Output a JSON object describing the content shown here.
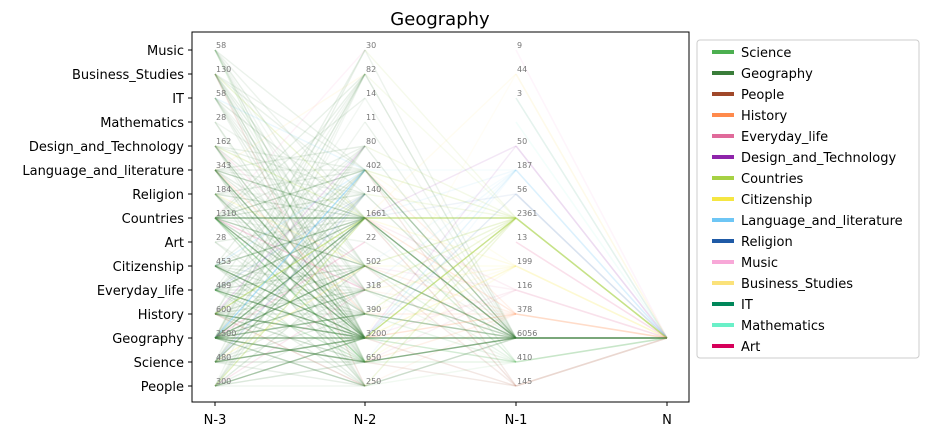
{
  "chart_data": {
    "type": "parallel-flow",
    "title": "Geography",
    "x_axis": [
      "N-3",
      "N-2",
      "N-1",
      "N"
    ],
    "y_categories": [
      "Music",
      "Business_Studies",
      "IT",
      "Mathematics",
      "Design_and_Technology",
      "Language_and_literature",
      "Religion",
      "Countries",
      "Art",
      "Citizenship",
      "Everyday_life",
      "History",
      "Geography",
      "Science",
      "People"
    ],
    "counts": {
      "N-3": {
        "Music": "58",
        "Business_Studies": "130",
        "IT": "58",
        "Mathematics": "28",
        "Design_and_Technology": "162",
        "Language_and_literature": "343",
        "Religion": "184",
        "Countries": "1310",
        "Art": "28",
        "Citizenship": "453",
        "Everyday_life": "489",
        "History": "600",
        "Geography": "2500",
        "Science": "480",
        "People": "300"
      },
      "N-2": {
        "Music": "30",
        "Business_Studies": "82",
        "IT": "14",
        "Mathematics": "11",
        "Design_and_Technology": "80",
        "Language_and_literature": "402",
        "Religion": "140",
        "Countries": "1661",
        "Art": "22",
        "Citizenship": "502",
        "Everyday_life": "318",
        "History": "390",
        "Geography": "3200",
        "Science": "650",
        "People": "250"
      },
      "N-1": {
        "Music": "9",
        "Business_Studies": "44",
        "IT": "3",
        "Mathematics": "",
        "Design_and_Technology": "50",
        "Language_and_literature": "187",
        "Religion": "56",
        "Countries": "2361",
        "Art": "13",
        "Citizenship": "199",
        "Everyday_life": "116",
        "History": "378",
        "Geography": "6056",
        "Science": "410",
        "People": "145"
      }
    },
    "target": "Geography",
    "legend": [
      {
        "name": "Science",
        "color": "#4caf50"
      },
      {
        "name": "Geography",
        "color": "#3a7d3a"
      },
      {
        "name": "People",
        "color": "#a0482a"
      },
      {
        "name": "History",
        "color": "#ff8a4c"
      },
      {
        "name": "Everyday_life",
        "color": "#e06a9a"
      },
      {
        "name": "Design_and_Technology",
        "color": "#8e24aa"
      },
      {
        "name": "Countries",
        "color": "#a6d144"
      },
      {
        "name": "Citizenship",
        "color": "#f5e642"
      },
      {
        "name": "Language_and_literature",
        "color": "#6ec6f5"
      },
      {
        "name": "Religion",
        "color": "#1f5aa6"
      },
      {
        "name": "Music",
        "color": "#f8a8d8"
      },
      {
        "name": "Business_Studies",
        "color": "#fbe27a"
      },
      {
        "name": "IT",
        "color": "#00875a"
      },
      {
        "name": "Mathematics",
        "color": "#6af0c8"
      },
      {
        "name": "Art",
        "color": "#d6005a"
      }
    ],
    "legend_position": "outside-right",
    "grid": false
  }
}
